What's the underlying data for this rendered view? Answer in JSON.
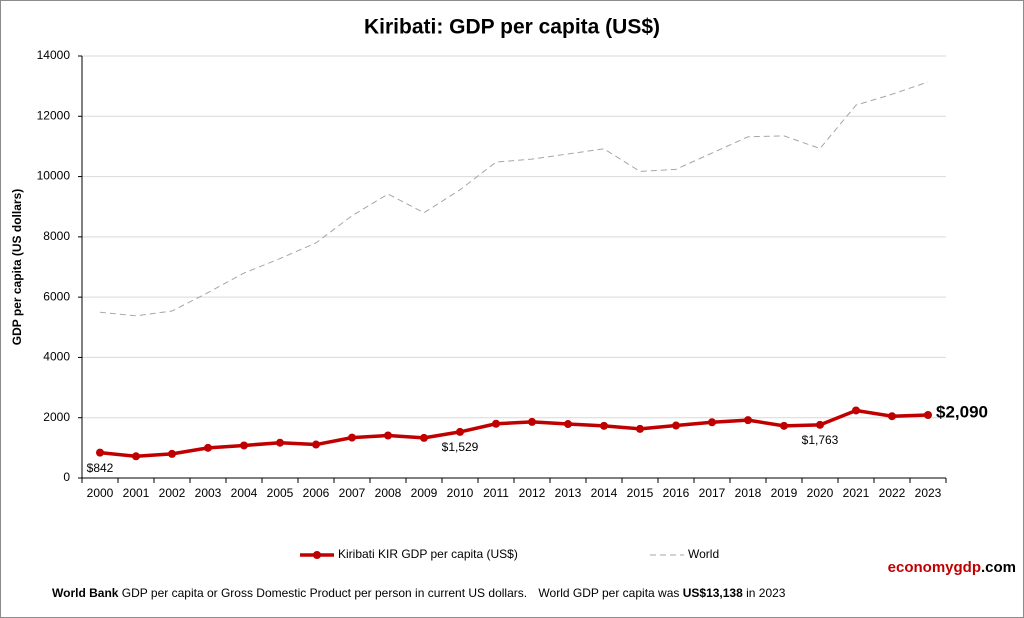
{
  "chart_data": {
    "type": "line",
    "title": "Kiribati: GDP per capita (US$)",
    "y_label": "GDP per capita (US dollars)",
    "categories": [
      "2000",
      "2001",
      "2002",
      "2003",
      "2004",
      "2005",
      "2006",
      "2007",
      "2008",
      "2009",
      "2010",
      "2011",
      "2012",
      "2013",
      "2014",
      "2015",
      "2016",
      "2017",
      "2018",
      "2019",
      "2020",
      "2021",
      "2022",
      "2023"
    ],
    "series": [
      {
        "name": "Kiribati KIR GDP per capita (US$)",
        "color": "#c00000",
        "style": "solid",
        "values": [
          842,
          720,
          800,
          1000,
          1080,
          1170,
          1110,
          1340,
          1410,
          1330,
          1529,
          1800,
          1860,
          1790,
          1730,
          1630,
          1740,
          1850,
          1920,
          1730,
          1763,
          2240,
          2050,
          2090
        ],
        "value_labels": [
          "$842",
          null,
          null,
          null,
          null,
          null,
          null,
          null,
          null,
          null,
          "$1,529",
          null,
          null,
          null,
          null,
          null,
          null,
          null,
          null,
          null,
          "$1,763",
          null,
          null,
          "$2,090"
        ]
      },
      {
        "name": "World",
        "color": "#a6a6a6",
        "style": "dashed",
        "values": [
          5500,
          5380,
          5540,
          6150,
          6800,
          7280,
          7800,
          8700,
          9420,
          8800,
          9560,
          10480,
          10580,
          10750,
          10920,
          10170,
          10240,
          10780,
          11320,
          11350,
          10930,
          12370,
          12730,
          13138
        ]
      }
    ],
    "ylim": [
      0,
      14000
    ],
    "yticks": [
      0,
      2000,
      4000,
      6000,
      8000,
      10000,
      12000,
      14000
    ],
    "grid": true,
    "legend": "bottom",
    "footer": [
      "World Bank",
      "GDP per capita or Gross Domestic Product per person in current US dollars.",
      "World GDP per capita was",
      "US$13,138",
      "in 2023"
    ],
    "brand": [
      "economygdp",
      ".com"
    ]
  }
}
